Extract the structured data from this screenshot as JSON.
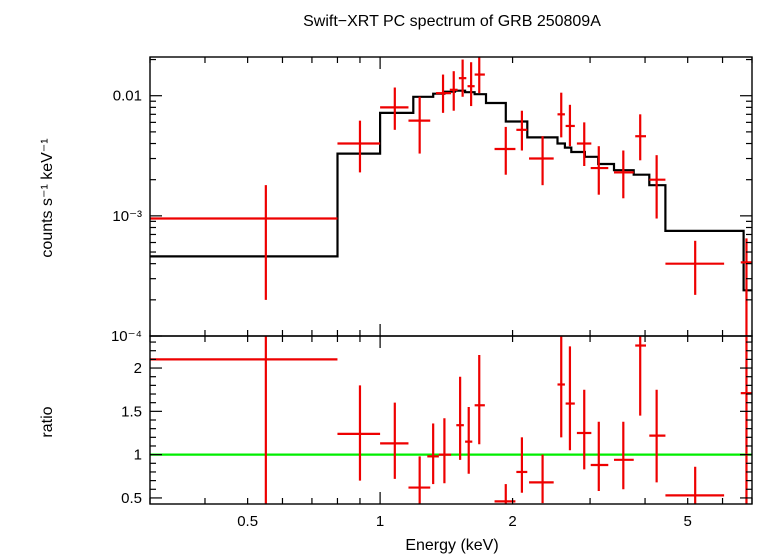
{
  "chart_data": {
    "type": "scatter",
    "title": "Swift−XRT PC spectrum of GRB 250809A",
    "xlabel": "Energy (keV)",
    "xscale": "log",
    "xlim": [
      0.3,
      7.0
    ],
    "xticks": [
      {
        "value": 0.5,
        "label": "0.5"
      },
      {
        "value": 1,
        "label": "1"
      },
      {
        "value": 2,
        "label": "2"
      },
      {
        "value": 5,
        "label": "5"
      }
    ],
    "colors": {
      "data": "#ee0000",
      "model": "#000000",
      "ratio_line": "#00ee00",
      "axes": "#000000"
    },
    "panels": [
      {
        "name": "spectrum",
        "ylabel": "counts s⁻¹ keV⁻¹",
        "yscale": "log",
        "ylim": [
          0.0001,
          0.021
        ],
        "yticks": [
          {
            "value": 0.0001,
            "label": "10⁻⁴"
          },
          {
            "value": 0.001,
            "label": "10⁻³"
          },
          {
            "value": 0.01,
            "label": "0.01"
          }
        ],
        "model_bins": [
          {
            "x0": 0.3,
            "x1": 0.8,
            "y": 0.00046
          },
          {
            "x0": 0.8,
            "x1": 1.0,
            "y": 0.0033
          },
          {
            "x0": 1.0,
            "x1": 1.19,
            "y": 0.0072
          },
          {
            "x0": 1.19,
            "x1": 1.32,
            "y": 0.0098
          },
          {
            "x0": 1.32,
            "x1": 1.4,
            "y": 0.0104
          },
          {
            "x0": 1.4,
            "x1": 1.48,
            "y": 0.0108
          },
          {
            "x0": 1.48,
            "x1": 1.56,
            "y": 0.011
          },
          {
            "x0": 1.56,
            "x1": 1.64,
            "y": 0.0107
          },
          {
            "x0": 1.64,
            "x1": 1.74,
            "y": 0.0103
          },
          {
            "x0": 1.74,
            "x1": 1.93,
            "y": 0.0087
          },
          {
            "x0": 1.93,
            "x1": 2.16,
            "y": 0.0061
          },
          {
            "x0": 2.16,
            "x1": 2.53,
            "y": 0.0045
          },
          {
            "x0": 2.53,
            "x1": 2.63,
            "y": 0.004
          },
          {
            "x0": 2.63,
            "x1": 2.72,
            "y": 0.0037
          },
          {
            "x0": 2.72,
            "x1": 2.92,
            "y": 0.0034
          },
          {
            "x0": 2.92,
            "x1": 3.13,
            "y": 0.0031
          },
          {
            "x0": 3.13,
            "x1": 3.4,
            "y": 0.0027
          },
          {
            "x0": 3.4,
            "x1": 3.77,
            "y": 0.0024
          },
          {
            "x0": 3.77,
            "x1": 4.09,
            "y": 0.0022
          },
          {
            "x0": 4.09,
            "x1": 4.45,
            "y": 0.0018
          },
          {
            "x0": 4.45,
            "x1": 6.7,
            "y": 0.00075
          },
          {
            "x0": 6.7,
            "x1": 7.0,
            "y": 0.00024
          }
        ],
        "data": [
          {
            "x": 0.55,
            "xlo": 0.3,
            "xhi": 0.8,
            "y": 0.00095,
            "ylo": 0.0002,
            "yhi": 0.0018
          },
          {
            "x": 0.9,
            "xlo": 0.8,
            "xhi": 1.0,
            "y": 0.004,
            "ylo": 0.0023,
            "yhi": 0.0062
          },
          {
            "x": 1.08,
            "xlo": 1.0,
            "xhi": 1.16,
            "y": 0.008,
            "ylo": 0.0052,
            "yhi": 0.0117
          },
          {
            "x": 1.23,
            "xlo": 1.16,
            "xhi": 1.3,
            "y": 0.0062,
            "ylo": 0.0033,
            "yhi": 0.0098
          },
          {
            "x": 1.39,
            "xlo": 1.34,
            "xhi": 1.45,
            "y": 0.0105,
            "ylo": 0.0072,
            "yhi": 0.015
          },
          {
            "x": 1.47,
            "xlo": 1.44,
            "xhi": 1.5,
            "y": 0.0112,
            "ylo": 0.0075,
            "yhi": 0.016
          },
          {
            "x": 1.54,
            "xlo": 1.51,
            "xhi": 1.57,
            "y": 0.014,
            "ylo": 0.0098,
            "yhi": 0.02
          },
          {
            "x": 1.61,
            "xlo": 1.58,
            "xhi": 1.64,
            "y": 0.012,
            "ylo": 0.0082,
            "yhi": 0.019
          },
          {
            "x": 1.68,
            "xlo": 1.64,
            "xhi": 1.73,
            "y": 0.015,
            "ylo": 0.0105,
            "yhi": 0.021
          },
          {
            "x": 1.93,
            "xlo": 1.82,
            "xhi": 2.03,
            "y": 0.0036,
            "ylo": 0.0022,
            "yhi": 0.0055
          },
          {
            "x": 2.1,
            "xlo": 2.04,
            "xhi": 2.16,
            "y": 0.0052,
            "ylo": 0.0035,
            "yhi": 0.0075
          },
          {
            "x": 2.34,
            "xlo": 2.18,
            "xhi": 2.48,
            "y": 0.003,
            "ylo": 0.0018,
            "yhi": 0.0046
          },
          {
            "x": 2.58,
            "xlo": 2.53,
            "xhi": 2.63,
            "y": 0.007,
            "ylo": 0.0045,
            "yhi": 0.0106
          },
          {
            "x": 2.7,
            "xlo": 2.64,
            "xhi": 2.77,
            "y": 0.0056,
            "ylo": 0.0038,
            "yhi": 0.0084
          },
          {
            "x": 2.91,
            "xlo": 2.8,
            "xhi": 3.02,
            "y": 0.004,
            "ylo": 0.0026,
            "yhi": 0.006
          },
          {
            "x": 3.14,
            "xlo": 3.01,
            "xhi": 3.3,
            "y": 0.0025,
            "ylo": 0.0015,
            "yhi": 0.0038
          },
          {
            "x": 3.57,
            "xlo": 3.4,
            "xhi": 3.77,
            "y": 0.0023,
            "ylo": 0.0014,
            "yhi": 0.0035
          },
          {
            "x": 3.9,
            "xlo": 3.8,
            "xhi": 4.02,
            "y": 0.0046,
            "ylo": 0.0029,
            "yhi": 0.007
          },
          {
            "x": 4.25,
            "xlo": 4.09,
            "xhi": 4.45,
            "y": 0.002,
            "ylo": 0.00095,
            "yhi": 0.0032
          },
          {
            "x": 5.2,
            "xlo": 4.45,
            "xhi": 6.05,
            "y": 0.0004,
            "ylo": 0.00022,
            "yhi": 0.00062
          },
          {
            "x": 6.8,
            "xlo": 6.6,
            "xhi": 7.0,
            "y": 0.00041,
            "ylo": 0.0001,
            "yhi": 0.00065
          }
        ]
      },
      {
        "name": "ratio",
        "ylabel": "ratio",
        "yscale": "linear",
        "ylim": [
          0.43,
          2.37
        ],
        "yticks": [
          {
            "value": 0.5,
            "label": "0.5"
          },
          {
            "value": 1,
            "label": "1"
          },
          {
            "value": 1.5,
            "label": "1.5"
          },
          {
            "value": 2,
            "label": "2"
          }
        ],
        "reference_line": 1,
        "data": [
          {
            "x": 0.55,
            "xlo": 0.3,
            "xhi": 0.8,
            "y": 2.1,
            "ylo": 0.43,
            "yhi": 2.37
          },
          {
            "x": 0.9,
            "xlo": 0.8,
            "xhi": 1.0,
            "y": 1.24,
            "ylo": 0.7,
            "yhi": 1.8
          },
          {
            "x": 1.08,
            "xlo": 1.0,
            "xhi": 1.16,
            "y": 1.13,
            "ylo": 0.72,
            "yhi": 1.6
          },
          {
            "x": 1.23,
            "xlo": 1.16,
            "xhi": 1.3,
            "y": 0.62,
            "ylo": 0.43,
            "yhi": 0.98
          },
          {
            "x": 1.32,
            "xlo": 1.28,
            "xhi": 1.36,
            "y": 0.98,
            "ylo": 0.66,
            "yhi": 1.36
          },
          {
            "x": 1.4,
            "xlo": 1.36,
            "xhi": 1.45,
            "y": 1.0,
            "ylo": 0.67,
            "yhi": 1.42
          },
          {
            "x": 1.52,
            "xlo": 1.49,
            "xhi": 1.55,
            "y": 1.34,
            "ylo": 0.94,
            "yhi": 1.9
          },
          {
            "x": 1.59,
            "xlo": 1.56,
            "xhi": 1.62,
            "y": 1.15,
            "ylo": 0.78,
            "yhi": 1.55
          },
          {
            "x": 1.68,
            "xlo": 1.64,
            "xhi": 1.73,
            "y": 1.57,
            "ylo": 1.12,
            "yhi": 2.15
          },
          {
            "x": 1.93,
            "xlo": 1.82,
            "xhi": 2.03,
            "y": 0.46,
            "ylo": 0.43,
            "yhi": 0.66
          },
          {
            "x": 2.1,
            "xlo": 2.04,
            "xhi": 2.16,
            "y": 0.8,
            "ylo": 0.56,
            "yhi": 1.2
          },
          {
            "x": 2.34,
            "xlo": 2.18,
            "xhi": 2.48,
            "y": 0.68,
            "ylo": 0.44,
            "yhi": 1.0
          },
          {
            "x": 2.58,
            "xlo": 2.53,
            "xhi": 2.63,
            "y": 1.81,
            "ylo": 1.2,
            "yhi": 2.37
          },
          {
            "x": 2.7,
            "xlo": 2.64,
            "xhi": 2.77,
            "y": 1.59,
            "ylo": 1.05,
            "yhi": 2.25
          },
          {
            "x": 2.91,
            "xlo": 2.8,
            "xhi": 3.02,
            "y": 1.25,
            "ylo": 0.83,
            "yhi": 1.75
          },
          {
            "x": 3.14,
            "xlo": 3.01,
            "xhi": 3.3,
            "y": 0.88,
            "ylo": 0.58,
            "yhi": 1.38
          },
          {
            "x": 3.57,
            "xlo": 3.4,
            "xhi": 3.77,
            "y": 0.94,
            "ylo": 0.6,
            "yhi": 1.38
          },
          {
            "x": 3.9,
            "xlo": 3.8,
            "xhi": 4.02,
            "y": 2.26,
            "ylo": 1.45,
            "yhi": 2.37
          },
          {
            "x": 4.25,
            "xlo": 4.09,
            "xhi": 4.45,
            "y": 1.22,
            "ylo": 0.68,
            "yhi": 1.75
          },
          {
            "x": 5.2,
            "xlo": 4.45,
            "xhi": 6.05,
            "y": 0.53,
            "ylo": 0.43,
            "yhi": 0.86
          },
          {
            "x": 6.8,
            "xlo": 6.6,
            "xhi": 7.0,
            "y": 1.71,
            "ylo": 0.43,
            "yhi": 2.37
          }
        ]
      }
    ]
  }
}
